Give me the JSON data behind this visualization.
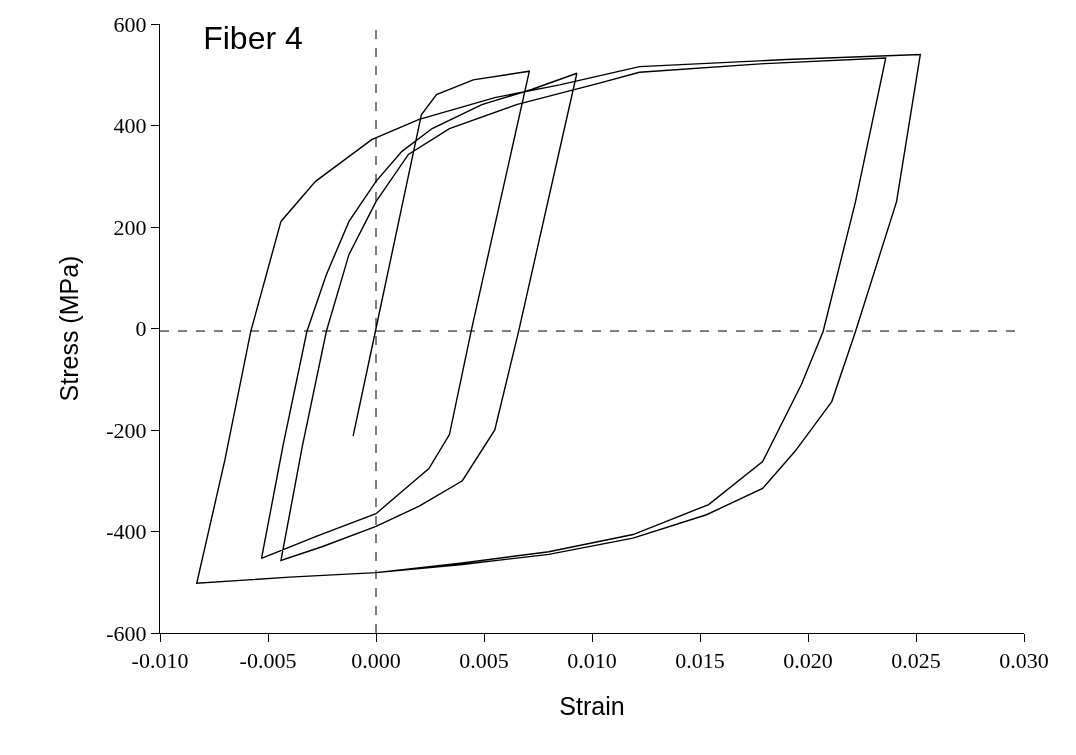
{
  "chart_data": {
    "type": "line",
    "title": "Fiber 4",
    "xlabel": "Strain",
    "ylabel": "Stress (MPa)",
    "xlim": [
      -0.01,
      0.03
    ],
    "xticks": [
      {
        "value": -0.01,
        "label": "-0.010"
      },
      {
        "value": -0.005,
        "label": "-0.005"
      },
      {
        "value": 0,
        "label": "0.000"
      },
      {
        "value": 0.005,
        "label": "0.005"
      },
      {
        "value": 0.01,
        "label": "0.010"
      },
      {
        "value": 0.015,
        "label": "0.015"
      },
      {
        "value": 0.02,
        "label": "0.020"
      },
      {
        "value": 0.025,
        "label": "0.025"
      },
      {
        "value": 0.03,
        "label": "0.030"
      }
    ],
    "ylim": [
      -600,
      600
    ],
    "yticks": [
      -600,
      -400,
      -200,
      0,
      200,
      400,
      600
    ],
    "grid": false,
    "marker": "none",
    "line_style": "solid",
    "ref_lines": [
      {
        "axis": "x",
        "value": 0,
        "line_style": "dashed",
        "color": "#000000"
      },
      {
        "axis": "y",
        "value": -5,
        "line_style": "dashed",
        "color": "#000000"
      }
    ],
    "series": [
      {
        "color": "#000000",
        "x": [
          -0.00106,
          0.0,
          0.0021,
          0.0028,
          0.0045,
          0.0071,
          0.0044,
          0.0034,
          0.00245,
          0.0012,
          0.0,
          -0.0028,
          -0.0053,
          -0.0043,
          -0.0032,
          -0.0023,
          -0.00125,
          0.0,
          0.0012,
          0.0026,
          0.0049,
          0.0072,
          0.0093,
          0.0066,
          0.0055,
          0.004,
          0.002,
          0.0,
          -0.0025,
          -0.0044,
          -0.0034,
          -0.0023,
          -0.00125,
          0.0,
          0.0015,
          0.0034,
          0.0065,
          0.0103,
          0.0122,
          0.018,
          0.0236,
          0.0222,
          0.0207,
          0.0197,
          0.0179,
          0.0154,
          0.0119,
          0.008,
          0.004,
          0.0,
          -0.004,
          -0.0083,
          -0.007,
          -0.0058,
          -0.0044,
          -0.0028,
          -0.0002,
          0.002,
          0.0055,
          0.0085,
          0.0122,
          0.019,
          0.0252,
          0.0241,
          0.0222,
          0.0211,
          0.0194,
          0.0179,
          0.0153,
          0.0119,
          0.008,
          0.004,
          0.0,
          -0.004
        ],
        "values": [
          -212,
          0,
          421,
          461,
          490,
          507,
          -6,
          -209,
          -276,
          -321,
          -365,
          -410,
          -453,
          -230,
          -6,
          106,
          211,
          290,
          349,
          394,
          441,
          471,
          503,
          -6,
          -200,
          -300,
          -350,
          -390,
          -430,
          -457,
          -230,
          -6,
          146,
          250,
          343,
          394,
          441,
          483,
          505,
          522,
          533,
          250,
          -6,
          -110,
          -262,
          -347,
          -406,
          -440,
          -462,
          -481,
          -490,
          -502,
          -260,
          -6,
          211,
          290,
          372,
          412,
          455,
          480,
          516,
          530,
          540,
          250,
          -6,
          -144,
          -242,
          -315,
          -367,
          -413,
          -445,
          -465,
          -481,
          -490
        ]
      }
    ]
  }
}
